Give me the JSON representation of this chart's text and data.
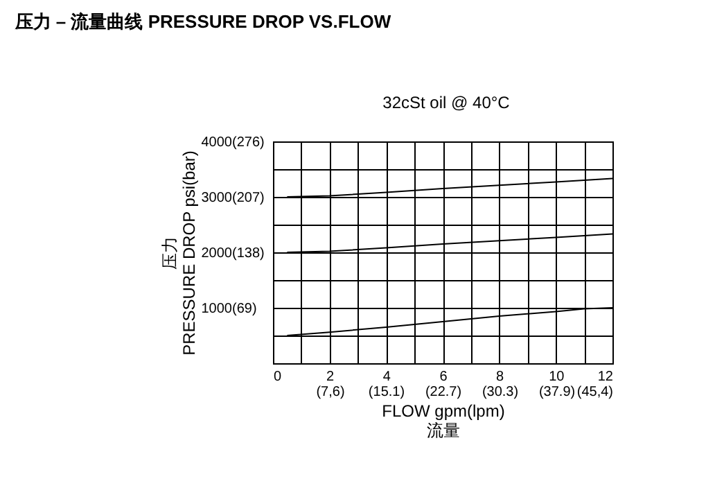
{
  "chart_data": {
    "type": "line",
    "title": "压力 – 流量曲线 PRESSURE DROP VS.FLOW",
    "annotations": [
      "32cSt oil @ 40°C"
    ],
    "xlabel": "FLOW gpm(lpm)\n流量",
    "ylabel": "压力\nPRESSURE DROP psi(bar)",
    "x": [
      0.5,
      2,
      4,
      6,
      8,
      10,
      11,
      12
    ],
    "series": [
      {
        "color": "#000000",
        "values": [
          500,
          560,
          650,
          750,
          850,
          930,
          980,
          1000
        ]
      },
      {
        "color": "#000000",
        "values": [
          2000,
          2020,
          2080,
          2150,
          2210,
          2270,
          2300,
          2330
        ]
      },
      {
        "color": "#000000",
        "values": [
          3000,
          3020,
          3080,
          3150,
          3210,
          3270,
          3300,
          3330
        ]
      }
    ],
    "xlim": [
      0,
      12
    ],
    "ylim": [
      0,
      4000
    ],
    "xticks": [
      0,
      {
        "value": 1,
        "label": null
      },
      2,
      {
        "value": 3,
        "label": null
      },
      4,
      {
        "value": 5,
        "label": null
      },
      6,
      {
        "value": 7,
        "label": null
      },
      8,
      {
        "value": 9,
        "label": null
      },
      10,
      {
        "value": 11,
        "label": null
      },
      12
    ],
    "x2lim": [
      0,
      45.4
    ],
    "x2ticks": [
      {
        "value": 7.6,
        "label": "(7,6)"
      },
      {
        "value": 15.1,
        "label": "(15.1)"
      },
      {
        "value": 22.7,
        "label": "(22.7)"
      },
      {
        "value": 30.3,
        "label": "(30.3)"
      },
      {
        "value": 37.9,
        "label": "(37.9)"
      },
      {
        "value": 45.4,
        "label": "(45,4)"
      }
    ],
    "yticks": [
      {
        "value": 0,
        "label": null
      },
      {
        "value": 500,
        "label": null
      },
      1000,
      {
        "value": 1500,
        "label": null
      },
      2000,
      {
        "value": 2500,
        "label": null
      },
      3000,
      {
        "value": 3500,
        "label": null
      },
      4000
    ],
    "y2lim": [
      0,
      276
    ],
    "y2ticks": [
      {
        "value": 69,
        "label": "(69)"
      },
      {
        "value": 138,
        "label": "(138)"
      },
      {
        "value": 207,
        "label": "(207)"
      },
      {
        "value": 276,
        "label": "(276)"
      }
    ],
    "grid": true,
    "legend": false,
    "marker": "none",
    "line_style": "solid"
  }
}
